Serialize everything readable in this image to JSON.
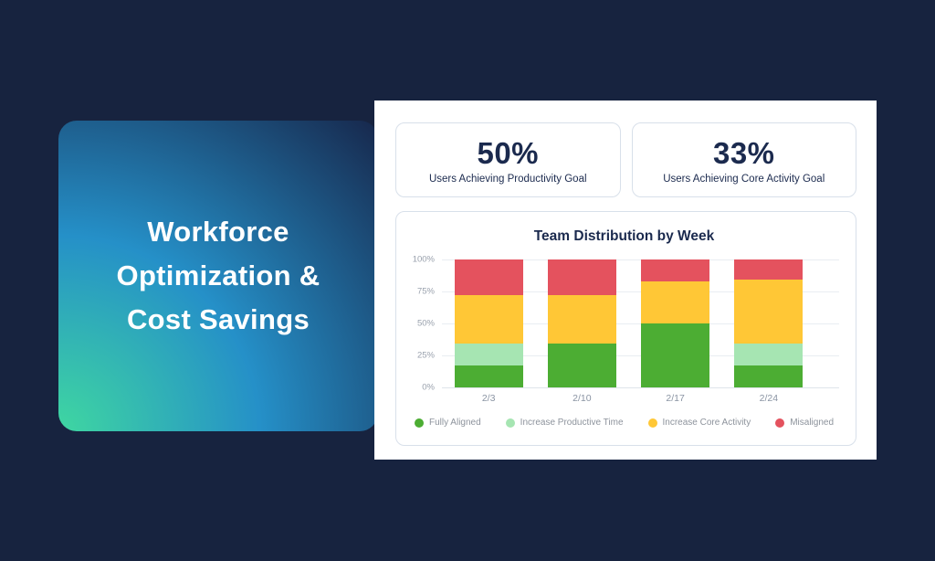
{
  "hero": {
    "lines": [
      "Workforce",
      "Optimization &",
      "Cost Savings"
    ]
  },
  "panel": {
    "stats": [
      {
        "value": "50%",
        "label": "Users Achieving Productivity Goal"
      },
      {
        "value": "33%",
        "label": "Users Achieving Core Activity Goal"
      }
    ]
  },
  "chart_data": {
    "type": "bar",
    "stacked": true,
    "title": "Team Distribution by Week",
    "categories": [
      "2/3",
      "2/10",
      "2/17",
      "2/24"
    ],
    "series": [
      {
        "name": "Fully Aligned",
        "color": "#4CAD33",
        "values": [
          17,
          34,
          50,
          17
        ]
      },
      {
        "name": "Increase Productive Time",
        "color": "#A6E5B2",
        "values": [
          17,
          0,
          0,
          17
        ]
      },
      {
        "name": "Increase Core Activity",
        "color": "#FFC736",
        "values": [
          38,
          38,
          33,
          50
        ]
      },
      {
        "name": "Misaligned",
        "color": "#E4525E",
        "values": [
          28,
          28,
          17,
          16
        ]
      }
    ],
    "y_ticks": [
      "100%",
      "75%",
      "50%",
      "25%",
      "0%"
    ],
    "ylim": [
      0,
      100
    ],
    "grid": true,
    "legend_position": "bottom"
  },
  "colors": {
    "background": "#17233F",
    "hero_gradient": [
      "#3FD7A1",
      "#2590C8",
      "#17294E"
    ],
    "text_navy": "#1B2A4E",
    "card_border": "#D8E0EA",
    "gridline": "#E9EDF2",
    "axis_label": "#99A1AD",
    "legend_label": "#8D939C"
  }
}
